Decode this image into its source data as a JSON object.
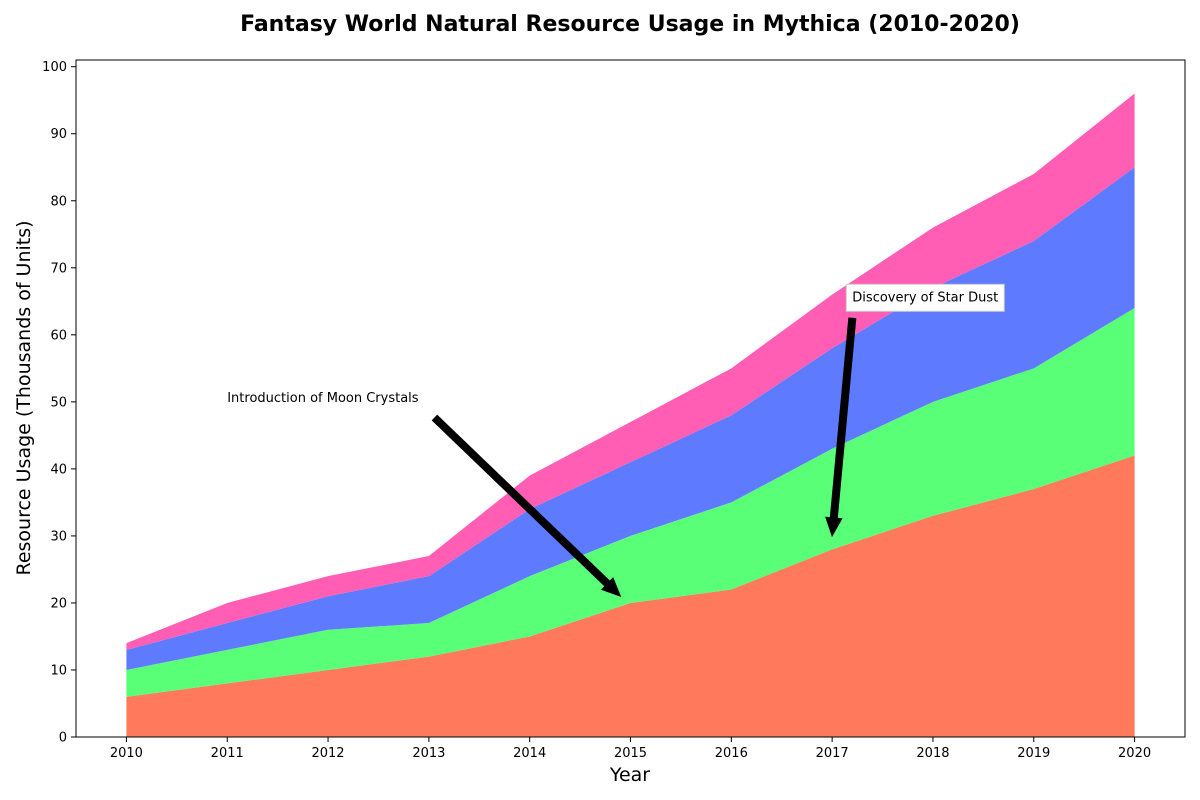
{
  "chart_data": {
    "type": "area",
    "stacked": true,
    "title": "Fantasy World Natural Resource Usage in Mythica (2010-2020)",
    "xlabel": "Year",
    "ylabel": "Resource Usage (Thousands of Units)",
    "x": [
      2010,
      2011,
      2012,
      2013,
      2014,
      2015,
      2016,
      2017,
      2018,
      2019,
      2020
    ],
    "xlim": [
      2009.5,
      2020.5
    ],
    "ylim": [
      0,
      101
    ],
    "yticks": [
      0,
      10,
      20,
      30,
      40,
      50,
      60,
      70,
      80,
      90,
      100
    ],
    "grid": false,
    "series": [
      {
        "color": "#ff7a5c",
        "values": [
          6,
          8,
          10,
          12,
          15,
          20,
          22,
          28,
          33,
          37,
          42
        ]
      },
      {
        "color": "#5aff78",
        "values": [
          4,
          5,
          6,
          5,
          9,
          10,
          13,
          15,
          17,
          18,
          22
        ]
      },
      {
        "color": "#5e7bff",
        "values": [
          3,
          4,
          5,
          7,
          10,
          11,
          13,
          15,
          17,
          19,
          21
        ]
      },
      {
        "color": "#ff5eb4",
        "values": [
          1,
          3,
          3,
          3,
          5,
          6,
          7,
          8,
          9,
          10,
          11
        ]
      }
    ],
    "annotations": [
      {
        "text": "Introduction of Moon Crystals",
        "text_at": [
          2011,
          50
        ],
        "point_at": [
          2014.9,
          21
        ],
        "boxed": false
      },
      {
        "text": "Discovery of Star Dust",
        "text_at": [
          2017.2,
          65
        ],
        "point_at": [
          2017,
          30
        ],
        "boxed": true
      }
    ]
  }
}
